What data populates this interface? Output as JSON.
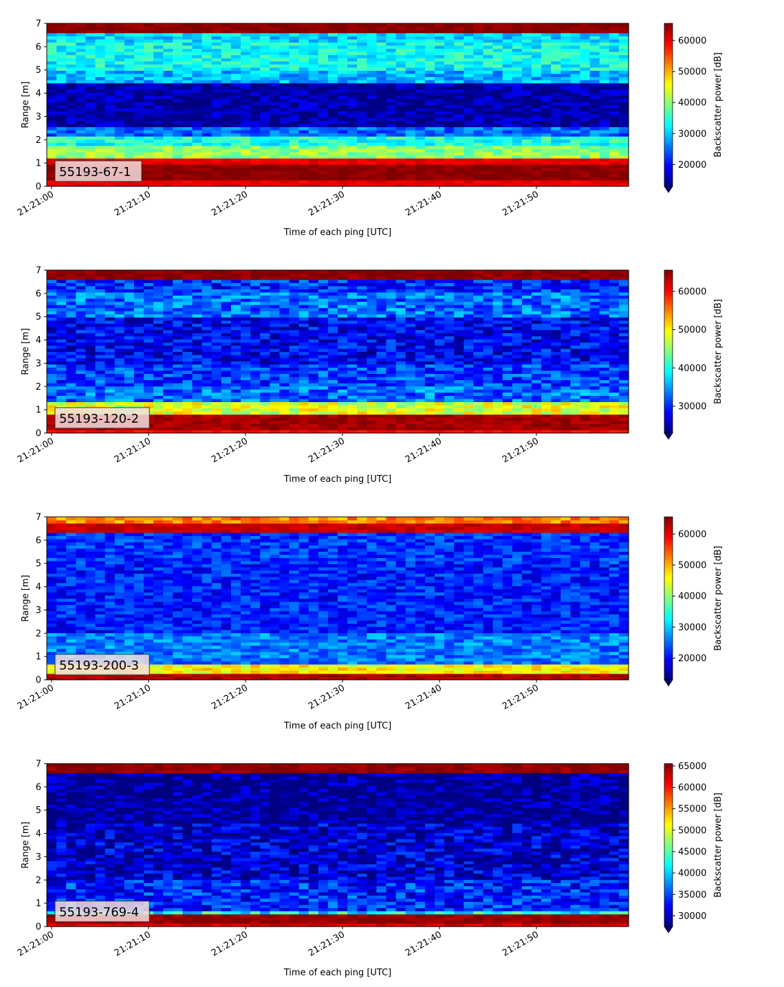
{
  "chart_data": [
    {
      "type": "heatmap",
      "panel_label": "55193-67-1",
      "xlabel": "Time of each ping [UTC]",
      "ylabel": "Range [m]",
      "xticks": [
        "21:21:00",
        "21:21:10",
        "21:21:20",
        "21:21:30",
        "21:21:40",
        "21:21:50"
      ],
      "xlim_seconds": [
        -0.5,
        59.5
      ],
      "yticks": [
        0,
        1,
        2,
        3,
        4,
        5,
        6,
        7
      ],
      "ylim": [
        0,
        7
      ],
      "colorbar": {
        "label": "Backscatter power [dB]",
        "colormap": "jet",
        "vmin": 13000,
        "vmax": 65535,
        "extend": "min",
        "ticks": [
          20000,
          30000,
          40000,
          50000,
          60000
        ]
      },
      "range_profile": [
        {
          "from": 0.0,
          "to": 0.25,
          "value": 60000
        },
        {
          "from": 0.25,
          "to": 1.0,
          "value": 65000
        },
        {
          "from": 1.0,
          "to": 1.2,
          "value": 60000
        },
        {
          "from": 1.2,
          "to": 1.8,
          "value": 40000
        },
        {
          "from": 1.8,
          "to": 2.2,
          "value": 34000
        },
        {
          "from": 2.2,
          "to": 2.6,
          "value": 25000
        },
        {
          "from": 2.6,
          "to": 4.4,
          "value": 15000
        },
        {
          "from": 4.4,
          "to": 5.0,
          "value": 29000
        },
        {
          "from": 5.0,
          "to": 6.2,
          "value": 33000
        },
        {
          "from": 6.2,
          "to": 6.6,
          "value": 31000
        },
        {
          "from": 6.6,
          "to": 7.0,
          "value": 65000
        }
      ]
    },
    {
      "type": "heatmap",
      "panel_label": "55193-120-2",
      "xlabel": "Time of each ping [UTC]",
      "ylabel": "Range [m]",
      "xticks": [
        "21:21:00",
        "21:21:10",
        "21:21:20",
        "21:21:30",
        "21:21:40",
        "21:21:50"
      ],
      "xlim_seconds": [
        -0.5,
        59.5
      ],
      "yticks": [
        0,
        1,
        2,
        3,
        4,
        5,
        6,
        7
      ],
      "ylim": [
        0,
        7
      ],
      "colorbar": {
        "label": "Backscatter power [dB]",
        "colormap": "jet",
        "vmin": 23000,
        "vmax": 65535,
        "extend": "min",
        "ticks": [
          30000,
          40000,
          50000,
          60000
        ]
      },
      "range_profile": [
        {
          "from": 0.0,
          "to": 0.2,
          "value": 60000
        },
        {
          "from": 0.2,
          "to": 0.8,
          "value": 64000
        },
        {
          "from": 0.8,
          "to": 1.4,
          "value": 48000
        },
        {
          "from": 1.4,
          "to": 2.0,
          "value": 33000
        },
        {
          "from": 2.0,
          "to": 3.0,
          "value": 31000
        },
        {
          "from": 3.0,
          "to": 5.0,
          "value": 28000
        },
        {
          "from": 5.0,
          "to": 6.0,
          "value": 33000
        },
        {
          "from": 6.0,
          "to": 6.6,
          "value": 30000
        },
        {
          "from": 6.6,
          "to": 7.0,
          "value": 65000
        }
      ]
    },
    {
      "type": "heatmap",
      "panel_label": "55193-200-3",
      "xlabel": "Time of each ping [UTC]",
      "ylabel": "Range [m]",
      "xticks": [
        "21:21:00",
        "21:21:10",
        "21:21:20",
        "21:21:30",
        "21:21:40",
        "21:21:50"
      ],
      "xlim_seconds": [
        -0.5,
        59.5
      ],
      "yticks": [
        0,
        1,
        2,
        3,
        4,
        5,
        6,
        7
      ],
      "ylim": [
        0,
        7
      ],
      "colorbar": {
        "label": "Backscatter power [dB]",
        "colormap": "jet",
        "vmin": 13000,
        "vmax": 65535,
        "extend": "min",
        "ticks": [
          20000,
          30000,
          40000,
          50000,
          60000
        ]
      },
      "range_profile": [
        {
          "from": 0.0,
          "to": 0.3,
          "value": 63000
        },
        {
          "from": 0.3,
          "to": 0.7,
          "value": 46000
        },
        {
          "from": 0.7,
          "to": 2.0,
          "value": 26000
        },
        {
          "from": 2.0,
          "to": 5.0,
          "value": 21000
        },
        {
          "from": 5.0,
          "to": 6.3,
          "value": 22000
        },
        {
          "from": 6.3,
          "to": 6.7,
          "value": 62000
        },
        {
          "from": 6.7,
          "to": 7.0,
          "value": 52000
        }
      ]
    },
    {
      "type": "heatmap",
      "panel_label": "55193-769-4",
      "xlabel": "Time of each ping [UTC]",
      "ylabel": "Range [m]",
      "xticks": [
        "21:21:00",
        "21:21:10",
        "21:21:20",
        "21:21:30",
        "21:21:40",
        "21:21:50"
      ],
      "xlim_seconds": [
        -0.5,
        59.5
      ],
      "yticks": [
        0,
        1,
        2,
        3,
        4,
        5,
        6,
        7
      ],
      "ylim": [
        0,
        7
      ],
      "colorbar": {
        "label": "Backscatter power [dB]",
        "colormap": "jet",
        "vmin": 27500,
        "vmax": 65535,
        "extend": "min",
        "ticks": [
          30000,
          35000,
          40000,
          45000,
          50000,
          55000,
          60000,
          65000
        ]
      },
      "range_profile": [
        {
          "from": 0.0,
          "to": 0.2,
          "value": 62000
        },
        {
          "from": 0.2,
          "to": 0.6,
          "value": 65000
        },
        {
          "from": 0.6,
          "to": 0.7,
          "value": 42000
        },
        {
          "from": 0.7,
          "to": 2.0,
          "value": 33500
        },
        {
          "from": 2.0,
          "to": 4.5,
          "value": 30500
        },
        {
          "from": 4.5,
          "to": 6.6,
          "value": 28000
        },
        {
          "from": 6.6,
          "to": 7.0,
          "value": 65000
        }
      ]
    }
  ]
}
